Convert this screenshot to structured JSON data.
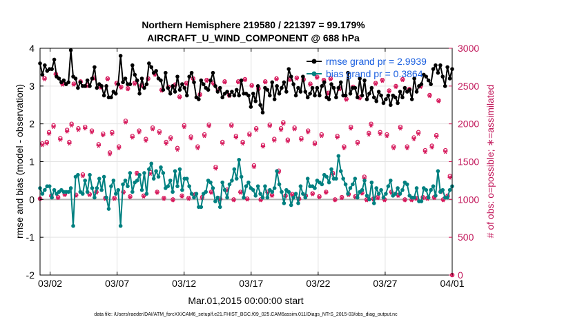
{
  "chart_data": {
    "type": "line",
    "title_line1": "Northern Hemisphere 219580 / 221397 = 99.179%",
    "title_line2": "AIRCRAFT_U_WIND_COMPONENT @ 688 hPa",
    "xlabel": "Mar.01,2015 00:00:00 start",
    "ylabel_left": "rmse and bias (model - observation)",
    "ylabel_right": "# of obs: o=possible; ∗=assimilated",
    "footer": "data file: /Users/raeder/DAI/ATM_forcXX/CAM6_setup/f.e21.FHIST_BGC.f09_025.CAM6assim.011/Diags_NTrS_2015-03/obs_diag_output.nc",
    "x_tick_labels": [
      "03/02",
      "03/07",
      "03/12",
      "03/17",
      "03/22",
      "03/27",
      "04/01"
    ],
    "x_tick_days": [
      1,
      6,
      11,
      16,
      21,
      26,
      31
    ],
    "xlim_days": [
      0.25,
      31.0
    ],
    "ylim_left": [
      -2,
      4
    ],
    "y_ticks_left": [
      "-2",
      "-1",
      "0",
      "1",
      "2",
      "3",
      "4"
    ],
    "ylim_right": [
      0,
      3000
    ],
    "y_ticks_right": [
      "0",
      "500",
      "1000",
      "1500",
      "2000",
      "2500",
      "3000"
    ],
    "grid": true,
    "legend_position": "top-right",
    "colors": {
      "rmse": "#000000",
      "bias": "#008080",
      "obs": "#d6185b",
      "zero_line": "#b0b0b0",
      "legend_text": "#1a5fe0"
    },
    "series": [
      {
        "name": "rmse grand pr = 2.9939",
        "axis": "left",
        "values": [
          3.6,
          3.3,
          3.55,
          3.4,
          3.45,
          3.45,
          3.7,
          3.25,
          3.2,
          3.1,
          3.15,
          3.05,
          3.1,
          3.95,
          3.25,
          3.2,
          2.95,
          3.1,
          3.0,
          3.0,
          3.15,
          3.0,
          3.2,
          3.5,
          2.95,
          3.05,
          3.0,
          2.75,
          3.0,
          2.7,
          2.7,
          2.85,
          2.8,
          3.05,
          3.8,
          3.1,
          3.2,
          3.05,
          3.05,
          3.55,
          3.3,
          3.15,
          2.8,
          3.2,
          2.95,
          3.05,
          3.6,
          3.5,
          3.35,
          3.4,
          3.2,
          3.15,
          2.9,
          3.35,
          2.95,
          2.8,
          3.0,
          2.85,
          3.25,
          2.9,
          3.05,
          2.95,
          2.75,
          3.25,
          3.35,
          3.1,
          2.7,
          2.65,
          3.15,
          3.05,
          2.95,
          2.9,
          3.15,
          3.35,
          3.0,
          2.85,
          2.95,
          2.7,
          2.8,
          2.85,
          2.75,
          2.85,
          2.75,
          2.9,
          2.75,
          3.15,
          2.8,
          2.8,
          2.75,
          2.45,
          2.8,
          2.6,
          3.0,
          2.5,
          2.3,
          2.95,
          2.9,
          2.75,
          3.1,
          2.65,
          3.0,
          2.8,
          2.95,
          3.1,
          2.85,
          3.45,
          3.25,
          3.05,
          2.75,
          2.95,
          2.85,
          3.25,
          2.85,
          2.7,
          2.8,
          2.95,
          2.75,
          2.95,
          2.75,
          3.0,
          3.1,
          2.7,
          2.65,
          3.05,
          2.95,
          2.7,
          2.95,
          3.1,
          2.75,
          2.75,
          3.35,
          2.8,
          2.95,
          2.95,
          2.7,
          3.2,
          2.75,
          3.15,
          2.65,
          2.8,
          2.95,
          2.7,
          2.6,
          2.85,
          2.75,
          2.55,
          2.65,
          2.75,
          2.5,
          2.75,
          2.7,
          2.55,
          2.85,
          2.7,
          2.95,
          2.85,
          2.9,
          2.65,
          3.2,
          2.85,
          3.0,
          3.05,
          3.3,
          3.25,
          3.15,
          3.05,
          3.45,
          3.55,
          3.35,
          3.55,
          3.25,
          3.0,
          3.5,
          3.2,
          3.45
        ]
      },
      {
        "name": "bias grand pr = 0.3864",
        "axis": "left",
        "values": [
          0.3,
          0.15,
          0.25,
          0.35,
          0.35,
          0.05,
          0.25,
          0.15,
          0.2,
          0.25,
          0.2,
          0.2,
          0.2,
          0.3,
          -0.7,
          0.6,
          0.65,
          0.2,
          0.15,
          0.5,
          0.2,
          0.65,
          0.3,
          0.05,
          0.3,
          0.55,
          0.25,
          0.6,
          0.05,
          -0.25,
          0.35,
          0.5,
          0.15,
          0.25,
          -0.7,
          0.4,
          0.5,
          0.35,
          0.7,
          0.2,
          0.45,
          0.5,
          0.65,
          0.25,
          0.7,
          0.15,
          0.8,
          0.95,
          0.55,
          0.75,
          0.6,
          0.85,
          0.7,
          0.3,
          0.35,
          0.5,
          0.2,
          0.75,
          0.35,
          0.8,
          0.25,
          0.55,
          0.55,
          0.35,
          0.15,
          0.05,
          0.15,
          -0.2,
          -0.2,
          0.15,
          0.2,
          0.5,
          0.45,
          0.3,
          -0.05,
          0.05,
          -0.2,
          0.45,
          0.25,
          0.05,
          0.4,
          0.5,
          0.8,
          0.55,
          1.05,
          0.6,
          0.05,
          0.35,
          0.45,
          0.3,
          0.25,
          0.1,
          0.35,
          0.15,
          0.05,
          0.35,
          0.05,
          0.25,
          0.2,
          0.3,
          0.75,
          0.4,
          0.2,
          -0.1,
          0.25,
          0.2,
          -0.15,
          0.05,
          0.15,
          -0.1,
          0.35,
          0.15,
          0.05,
          0.55,
          0.35,
          0.35,
          0.3,
          0.5,
          0.45,
          0.4,
          0.65,
          0.6,
          0.45,
          0.8,
          0.55,
          0.55,
          1.15,
          0.75,
          0.55,
          0.4,
          0.15,
          0.3,
          0.4,
          0.55,
          0.05,
          0.2,
          0.25,
          0.5,
          0.1,
          0.0,
          0.45,
          -0.1,
          0.3,
          0.15,
          0.25,
          0.05,
          0.15,
          0.35,
          0.5,
          0.1,
          0.15,
          0.3,
          0.15,
          0.25,
          0.45,
          0.4,
          0.1,
          0.05,
          0.05,
          0.3,
          -0.05,
          -0.05,
          0.3,
          0.25,
          0.05,
          0.25,
          0.35,
          0.1,
          0.75,
          0.2,
          0.25,
          0.05,
          0.05,
          0.25,
          0.35
        ]
      }
    ],
    "obs_possible": {
      "axis": "right",
      "values": [
        1010,
        1740,
        2605,
        1760,
        1890,
        1050,
        1980,
        2660,
        1030,
        1810,
        2530,
        1070,
        1920,
        1760,
        2000,
        2530,
        1060,
        1940,
        2560,
        1330,
        1960,
        2510,
        1070,
        1910,
        2610,
        1100,
        1730,
        2490,
        1870,
        1020,
        2600,
        1620,
        1890,
        1020,
        2540,
        1700,
        2490,
        1100,
        2040,
        2470,
        1040,
        1840,
        2540,
        1350,
        1910,
        2510,
        1050,
        1800,
        2600,
        1360,
        1950,
        2660,
        1100,
        1900,
        2450,
        1020,
        1760,
        2490,
        1820,
        1000,
        2520,
        1680,
        2360,
        1050,
        1980,
        2540,
        1020,
        1830,
        2600,
        1070,
        1700,
        2390,
        1030,
        1860,
        2580,
        1990,
        1100,
        2540,
        1430,
        2450,
        1010,
        1760,
        2560,
        1130,
        2380,
        1990,
        1000,
        1840,
        2560,
        1100,
        1760,
        2590,
        1010,
        1870,
        2510,
        1450,
        1940,
        2470,
        1000,
        1720,
        2560,
        1100,
        1990,
        1060,
        1800,
        2600,
        1380,
        1940,
        2020,
        1050,
        1790,
        2590,
        1070,
        1950,
        2610,
        1010,
        1810,
        2590,
        1050,
        1910,
        2530,
        1080,
        1750,
        2620,
        1040,
        1860,
        2580,
        1100,
        2410,
        2600,
        1350,
        1000,
        1840,
        2470,
        1030,
        1700,
        2330,
        1070,
        1960,
        2490,
        1040,
        1760,
        2350,
        1090,
        1300,
        1000,
        1880,
        2000,
        1010,
        2540,
        1030,
        1890,
        2580,
        1000,
        1860,
        2440,
        1100,
        1700,
        2500,
        1060,
        1960,
        2590,
        1000,
        1700,
        2460,
        1000,
        1820,
        1020,
        1890,
        2500,
        1030,
        1650,
        1020,
        2380,
        1710,
        1030,
        1850,
        2310,
        1110,
        1000,
        1650,
        1050,
        1310,
        0
      ]
    },
    "obs_assimilated": {
      "axis": "right",
      "values": [
        1010,
        1720,
        2590,
        1740,
        1870,
        1040,
        1960,
        2650,
        1020,
        1790,
        2520,
        1060,
        1900,
        1740,
        1980,
        2520,
        1050,
        1920,
        2550,
        1310,
        1940,
        2500,
        1060,
        1890,
        2600,
        1090,
        1710,
        2480,
        1850,
        1010,
        2590,
        1600,
        1870,
        1010,
        2530,
        1680,
        2480,
        1090,
        2020,
        2460,
        1030,
        1820,
        2530,
        1340,
        1890,
        2500,
        1040,
        1780,
        2590,
        1340,
        1930,
        2650,
        1090,
        1880,
        2440,
        1010,
        1740,
        2480,
        1800,
        990,
        2510,
        1660,
        2350,
        1040,
        1960,
        2530,
        1010,
        1810,
        2590,
        1060,
        1680,
        2380,
        1020,
        1840,
        2570,
        1970,
        1090,
        2530,
        1410,
        2440,
        1000,
        1740,
        2550,
        1120,
        2370,
        1970,
        990,
        1820,
        2550,
        1090,
        1740,
        2580,
        1000,
        1850,
        2500,
        1430,
        1920,
        2460,
        990,
        1700,
        2550,
        1090,
        1970,
        1050,
        1780,
        2590,
        1360,
        1920,
        2000,
        1040,
        1770,
        2580,
        1060,
        1930,
        2600,
        1000,
        1790,
        2580,
        1040,
        1890,
        2520,
        1070,
        1730,
        2610,
        1030,
        1840,
        2570,
        1090,
        2400,
        2590,
        1330,
        990,
        1820,
        2460,
        1020,
        1680,
        2320,
        1060,
        1940,
        2480,
        1030,
        1740,
        2340,
        1080,
        1280,
        990,
        1860,
        1980,
        1000,
        2530,
        1020,
        1870,
        2570,
        990,
        1840,
        2430,
        1090,
        1680,
        2490,
        1050,
        1940,
        2580,
        990,
        1680,
        2450,
        990,
        1800,
        1010,
        1870,
        2490,
        1020,
        1630,
        1010,
        2370,
        1690,
        1020,
        1830,
        2300,
        1100,
        990,
        1630,
        1040,
        1290,
        0
      ]
    }
  }
}
